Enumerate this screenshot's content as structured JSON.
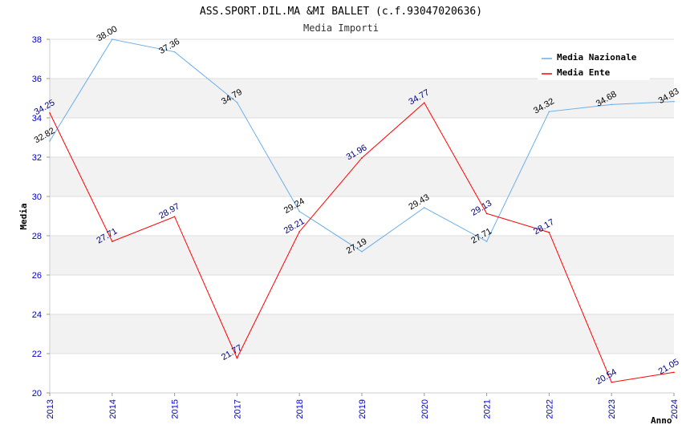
{
  "chart_data": {
    "type": "line",
    "title": "ASS.SPORT.DIL.MA &MI BALLET (c.f.93047020636)",
    "subtitle": "Media Importi",
    "xlabel": "Anno",
    "ylabel": "Media",
    "ylim": [
      20,
      38
    ],
    "yticks": [
      "20",
      "22",
      "24",
      "26",
      "28",
      "30",
      "32",
      "34",
      "36",
      "38"
    ],
    "categories": [
      "2013",
      "2014",
      "2015",
      "2017",
      "2018",
      "2019",
      "2020",
      "2021",
      "2022",
      "2023",
      "2024"
    ],
    "grid": "horizontal bands",
    "legend_position": "top-right",
    "series": [
      {
        "name": "Media Nazionale",
        "color": "#6aaee8",
        "values": [
          32.82,
          38.0,
          37.36,
          34.79,
          29.24,
          27.19,
          29.43,
          27.71,
          34.32,
          34.68,
          34.83
        ],
        "labels": [
          "32.82",
          "38.00",
          "37.36",
          "34.79",
          "29.24",
          "27.19",
          "29.43",
          "27.71",
          "34.32",
          "34.68",
          "34.83"
        ]
      },
      {
        "name": "Media Ente",
        "color": "#ff0000",
        "values": [
          34.25,
          27.71,
          28.97,
          21.77,
          28.21,
          31.96,
          34.77,
          29.13,
          28.17,
          20.54,
          21.05
        ],
        "labels": [
          "34.25",
          "27.71",
          "28.97",
          "21.77",
          "28.21",
          "31.96",
          "34.77",
          "29.13",
          "28.17",
          "20.54",
          "21.05"
        ]
      }
    ]
  }
}
